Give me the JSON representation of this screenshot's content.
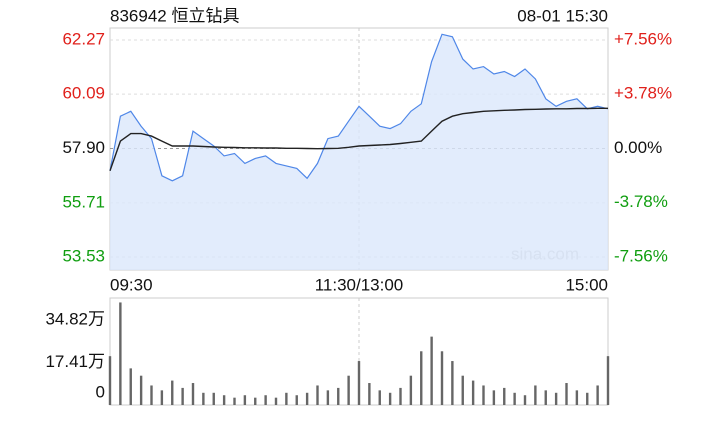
{
  "header": {
    "title": "836942 恒立钻具",
    "time": "08-01 15:30"
  },
  "chart_data": [
    {
      "type": "line",
      "x": [
        0,
        5,
        10,
        15,
        20,
        25,
        30,
        35,
        40,
        45,
        50,
        55,
        60,
        65,
        70,
        75,
        80,
        85,
        90,
        95,
        100,
        105,
        110,
        115,
        120,
        125,
        130,
        135,
        140,
        145,
        150,
        155,
        160,
        165,
        170,
        175,
        180,
        185,
        190,
        195,
        200,
        205,
        210,
        215,
        220,
        225,
        230,
        235,
        240
      ],
      "xlim": [
        0,
        240
      ],
      "xticks": [
        {
          "value": 0,
          "label": "09:30"
        },
        {
          "value": 120,
          "label": "11:30/13:00"
        },
        {
          "value": 240,
          "label": "15:00"
        }
      ],
      "series": [
        {
          "color": "#4f87e8",
          "fill": "#dbe7fb",
          "values": [
            57.0,
            59.2,
            59.4,
            58.8,
            58.3,
            56.8,
            56.6,
            56.8,
            58.6,
            58.3,
            58.0,
            57.6,
            57.7,
            57.3,
            57.5,
            57.6,
            57.3,
            57.2,
            57.1,
            56.7,
            57.3,
            58.3,
            58.4,
            59.0,
            59.6,
            59.2,
            58.8,
            58.7,
            58.9,
            59.4,
            59.7,
            61.4,
            62.5,
            62.4,
            61.5,
            61.1,
            61.2,
            60.9,
            61.0,
            60.8,
            61.1,
            60.7,
            59.9,
            59.6,
            59.8,
            59.9,
            59.5,
            59.6,
            59.5
          ]
        },
        {
          "color": "#222222",
          "values": [
            57.0,
            58.2,
            58.5,
            58.5,
            58.4,
            58.2,
            58.0,
            58.0,
            58.0,
            57.98,
            57.96,
            57.95,
            57.94,
            57.93,
            57.93,
            57.92,
            57.92,
            57.91,
            57.91,
            57.9,
            57.89,
            57.9,
            57.91,
            57.95,
            58.0,
            58.02,
            58.04,
            58.06,
            58.1,
            58.15,
            58.2,
            58.6,
            59.0,
            59.2,
            59.3,
            59.35,
            59.4,
            59.42,
            59.44,
            59.45,
            59.47,
            59.48,
            59.49,
            59.5,
            59.5,
            59.51,
            59.51,
            59.52,
            59.52
          ]
        }
      ],
      "ylim": [
        53.53,
        62.27
      ],
      "yticks": [
        62.27,
        60.09,
        {
          "value": 57.9,
          "label": "57.90"
        },
        55.71,
        53.53
      ],
      "y2lim": [
        -7.56,
        7.56
      ],
      "y2ticks": [
        {
          "value": 7.56,
          "label": "+7.56%"
        },
        {
          "value": 3.78,
          "label": "+3.78%"
        },
        {
          "value": 0,
          "label": "0.00%"
        },
        {
          "value": -3.78,
          "label": "-3.78%"
        },
        {
          "value": -7.56,
          "label": "-7.56%"
        }
      ],
      "grid": true,
      "up_color": "#e0201b",
      "down_color": "#109e10",
      "flat_color": "#111111",
      "annotation": "sina.com"
    },
    {
      "type": "bar",
      "x": [
        0,
        5,
        10,
        15,
        20,
        25,
        30,
        35,
        40,
        45,
        50,
        55,
        60,
        65,
        70,
        75,
        80,
        85,
        90,
        95,
        100,
        105,
        110,
        115,
        120,
        125,
        130,
        135,
        140,
        145,
        150,
        155,
        160,
        165,
        170,
        175,
        180,
        185,
        190,
        195,
        200,
        205,
        210,
        215,
        220,
        225,
        230,
        235,
        240
      ],
      "xlim": [
        0,
        240
      ],
      "values": [
        20,
        42,
        15,
        12,
        8,
        6,
        10,
        7,
        9,
        5,
        5,
        4,
        3,
        4,
        3,
        4,
        3,
        5,
        4,
        5,
        8,
        6,
        7,
        12,
        18,
        9,
        6,
        5,
        7,
        12,
        22,
        28,
        22,
        18,
        12,
        10,
        8,
        6,
        7,
        5,
        4,
        8,
        6,
        5,
        9,
        6,
        5,
        8,
        20
      ],
      "color": "#666666",
      "ylim": [
        0,
        43
      ],
      "yticks": [
        {
          "value": 34.82,
          "label": "34.82万"
        },
        {
          "value": 17.41,
          "label": "17.41万"
        },
        0
      ]
    }
  ]
}
